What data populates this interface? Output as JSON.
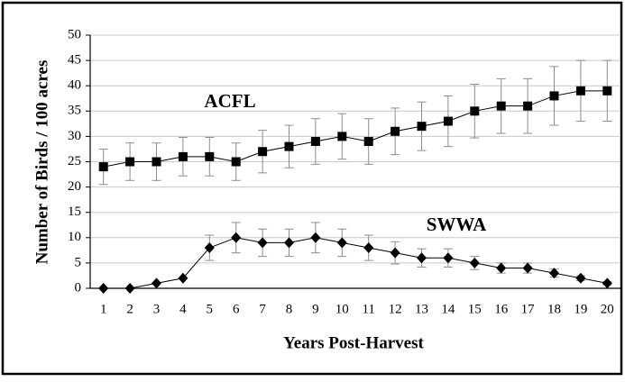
{
  "chart_data": {
    "type": "line",
    "x_label": "Years Post-Harvest",
    "y_label": "Number of Birds / 100 acres",
    "categories": [
      "1",
      "2",
      "3",
      "4",
      "5",
      "6",
      "7",
      "8",
      "9",
      "10",
      "11",
      "12",
      "13",
      "14",
      "15",
      "16",
      "17",
      "18",
      "19",
      "20"
    ],
    "series": [
      {
        "name": "ACFL",
        "color": "#000000",
        "marker": "square",
        "values": [
          24,
          25,
          25,
          26,
          26,
          25,
          27,
          28,
          29,
          30,
          29,
          31,
          32,
          33,
          35,
          36,
          36,
          38,
          39,
          39
        ],
        "errors": [
          3.5,
          3.7,
          3.7,
          3.8,
          3.8,
          3.7,
          4.2,
          4.2,
          4.5,
          4.5,
          4.5,
          4.6,
          4.8,
          5,
          5.3,
          5.4,
          5.4,
          5.8,
          6,
          6
        ]
      },
      {
        "name": "SWWA",
        "color": "#000000",
        "marker": "diamond",
        "values": [
          0,
          0,
          1,
          2,
          8,
          10,
          9,
          9,
          10,
          9,
          8,
          7,
          6,
          6,
          5,
          4,
          4,
          3,
          2,
          1
        ],
        "errors": [
          0,
          0,
          0,
          0,
          2.5,
          3,
          2.7,
          2.7,
          3,
          2.7,
          2.5,
          2.2,
          1.8,
          1.8,
          1.3,
          1,
          1,
          0.8,
          0.5,
          0.3
        ]
      }
    ],
    "ylim": [
      0,
      50
    ],
    "yticks": [
      0,
      5,
      10,
      15,
      20,
      25,
      30,
      35,
      40,
      45,
      50
    ],
    "grid": true,
    "error_color": "#8c8c8c"
  }
}
